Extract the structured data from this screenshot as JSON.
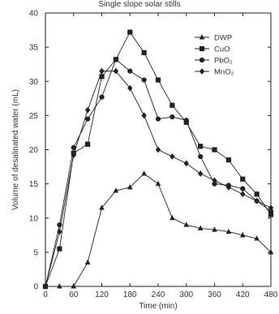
{
  "page": {
    "top_text": "Single slope solar stills"
  },
  "chart_data": {
    "type": "line",
    "xlabel": "Time (min)",
    "ylabel": "Volume of desalinated water (mL)",
    "xlim": [
      0,
      480
    ],
    "ylim": [
      0,
      40
    ],
    "xticks": [
      0,
      60,
      120,
      180,
      240,
      300,
      360,
      420,
      480
    ],
    "yticks": [
      0,
      5,
      10,
      15,
      20,
      25,
      30,
      35,
      40
    ],
    "grid": false,
    "legend_position": "top-right",
    "series": [
      {
        "name": "DWP",
        "marker": "triangle",
        "color": "#222222",
        "x": [
          0,
          30,
          60,
          90,
          120,
          150,
          180,
          210,
          240,
          270,
          300,
          330,
          360,
          390,
          420,
          450,
          480
        ],
        "y": [
          0,
          0,
          0,
          3.5,
          11.5,
          14,
          14.5,
          16.5,
          15,
          10,
          9,
          8.5,
          8.3,
          8,
          7.5,
          7,
          5
        ]
      },
      {
        "name": "CuO",
        "marker": "square",
        "color": "#222222",
        "x": [
          0,
          30,
          60,
          90,
          120,
          150,
          180,
          210,
          240,
          270,
          300,
          330,
          360,
          390,
          420,
          450,
          480
        ],
        "y": [
          0,
          5.5,
          19.5,
          20.8,
          30.7,
          33.2,
          37.2,
          34.2,
          30.2,
          26.5,
          24,
          20.5,
          20,
          18.5,
          15.7,
          13.5,
          10.5
        ]
      },
      {
        "name": "PbO₂",
        "marker": "circle",
        "color": "#222222",
        "x": [
          0,
          30,
          60,
          90,
          120,
          150,
          180,
          210,
          240,
          270,
          300,
          330,
          360,
          390,
          420,
          450,
          480
        ],
        "y": [
          0,
          9,
          20.3,
          24.5,
          27.7,
          33.2,
          31.5,
          30.2,
          24.5,
          24.8,
          24.3,
          19,
          15,
          14.8,
          14.3,
          12.5,
          11
        ]
      },
      {
        "name": "MnO₂",
        "marker": "diamond",
        "color": "#222222",
        "x": [
          0,
          30,
          60,
          90,
          120,
          150,
          180,
          210,
          240,
          270,
          300,
          330,
          360,
          390,
          420,
          450,
          480
        ],
        "y": [
          0,
          8,
          19.2,
          25.8,
          31.5,
          31.5,
          29,
          25,
          20,
          19,
          18,
          16.5,
          15.5,
          14.5,
          13.5,
          12.5,
          11.5
        ]
      }
    ]
  }
}
